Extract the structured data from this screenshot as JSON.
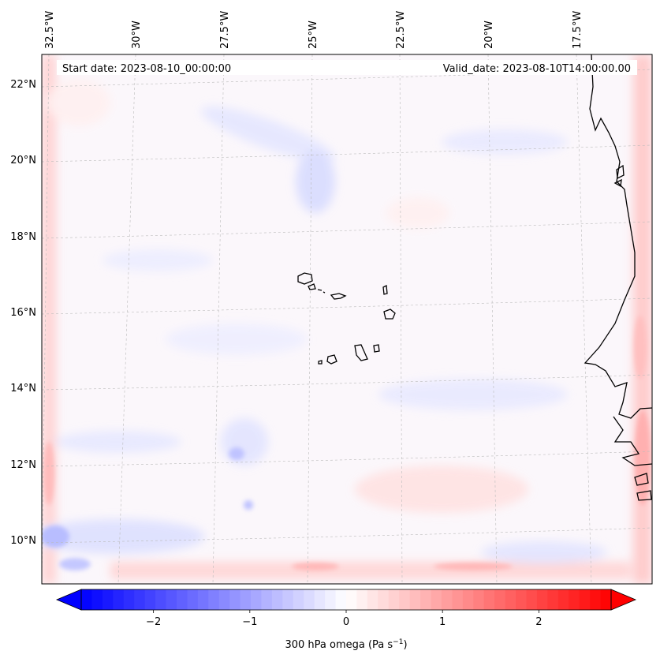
{
  "header": {
    "start_date": "Start date: 2023-08-10_00:00:00",
    "valid_date": "Valid_date: 2023-08-10T14:00:00.00"
  },
  "longitude_labels": [
    "32.5°W",
    "30°W",
    "27.5°W",
    "25°W",
    "22.5°W",
    "20°W",
    "17.5°W"
  ],
  "latitude_labels": [
    "22°N",
    "20°N",
    "18°N",
    "16°N",
    "14°N",
    "12°N",
    "10°N"
  ],
  "colorbar": {
    "label_prefix": "300 hPa omega (Pa s",
    "label_sup": "−1",
    "label_suffix": ")",
    "ticks": [
      "−2",
      "−1",
      "0",
      "1",
      "2"
    ],
    "range": [
      -2.75,
      2.75
    ],
    "cmap": "bwr",
    "extend": "both",
    "colors": {
      "negative": "#0000ff",
      "zero": "#ffffff",
      "positive": "#ff0000"
    }
  },
  "map": {
    "region": "Eastern tropical Atlantic, Cape Verde Islands and West African coast",
    "field": "300 hPa omega",
    "gridlines": "dashed grey"
  }
}
